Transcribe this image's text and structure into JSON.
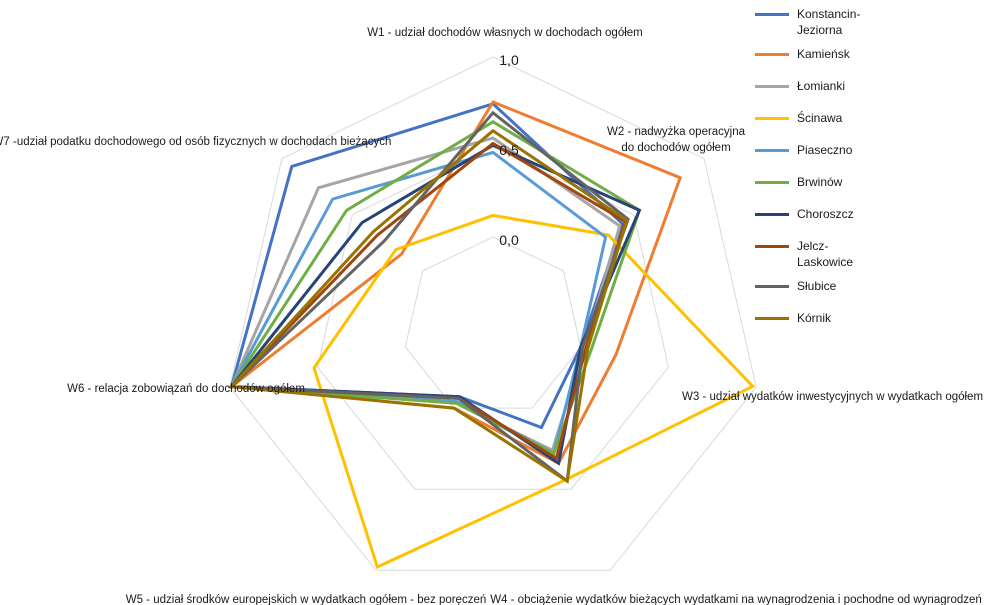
{
  "chart_data": {
    "type": "radar",
    "title": "",
    "axes": [
      "W1 - udział dochodów własnych w dochodach ogółem",
      "W2 - nadwyżka operacyjna do dochodów ogółem",
      "W3 - udział wydatków inwestycyjnych w wydatkach ogółem",
      "W4 - obciążenie wydatków bieżących wydatkami na wynagrodzenia i pochodne od wynagrodzeń",
      "W5 - udział środków europejskich w wydatkach ogółem - bez poręczeń",
      "W6 - relacja zobowiązań do dochodów ogółem",
      "W7 -udział podatku dochodowego od osób fizycznych w dochodach bieżących"
    ],
    "axis_label_lines": [
      [
        "W1 - udział dochodów własnych w dochodach ogółem"
      ],
      [
        "W2 - nadwyżka operacyjna",
        "do dochodów ogółem"
      ],
      [
        "W3 - udział wydatków inwestycyjnych w wydatkach ogółem"
      ],
      [
        "W4 - obciążenie wydatków bieżących wydatkami na wynagrodzenia i pochodne od wynagrodzeń"
      ],
      [
        "W5 - udział środków europejskich w wydatkach ogółem - bez poręczeń"
      ],
      [
        "W6 - relacja zobowiązań do dochodów ogółem"
      ],
      [
        "W7 -udział podatku dochodowego od osób fizycznych w dochodach bieżących"
      ]
    ],
    "r_min": -0.5,
    "r_max": 1.0,
    "ticks": [
      0.0,
      0.5,
      1.0
    ],
    "tick_labels": [
      "0,0",
      "0,5",
      "1,0"
    ],
    "grid": true,
    "grid_color": "#d9d9d9",
    "legend_position": "right",
    "series": [
      {
        "name": "Konstancin-Jeziorna",
        "name_lines": [
          "Konstancin-",
          "Jeziorna"
        ],
        "color": "#4472c4",
        "values": [
          0.74,
          0.42,
          0.0,
          0.12,
          -0.07,
          0.99,
          0.93
        ]
      },
      {
        "name": "Kamieńsk",
        "name_lines": [
          "Kamieńsk"
        ],
        "color": "#ed7d31",
        "values": [
          0.75,
          0.83,
          0.2,
          0.34,
          0.0,
          0.99,
          0.15
        ]
      },
      {
        "name": "Łomianki",
        "name_lines": [
          "Łomianki"
        ],
        "color": "#a5a5a5",
        "values": [
          0.55,
          0.4,
          0.02,
          0.26,
          -0.03,
          0.99,
          0.74
        ]
      },
      {
        "name": "Ścinawa",
        "name_lines": [
          "Ścinawa"
        ],
        "color": "#ffc000",
        "values": [
          0.12,
          0.32,
          0.98,
          0.44,
          0.98,
          0.52,
          0.19
        ]
      },
      {
        "name": "Piaseczno",
        "name_lines": [
          "Piaseczno"
        ],
        "color": "#5b9bd5",
        "values": [
          0.47,
          0.3,
          0.0,
          0.28,
          -0.04,
          0.99,
          0.64
        ]
      },
      {
        "name": "Brwinów",
        "name_lines": [
          "Brwinów"
        ],
        "color": "#70ad47",
        "values": [
          0.64,
          0.54,
          0.06,
          0.28,
          -0.03,
          0.99,
          0.54
        ]
      },
      {
        "name": "Choroszcz",
        "name_lines": [
          "Choroszcz"
        ],
        "color": "#264478",
        "values": [
          0.51,
          0.54,
          0.0,
          0.34,
          -0.07,
          0.99,
          0.43
        ]
      },
      {
        "name": "Jelcz-Laskowice",
        "name_lines": [
          "Jelcz-",
          "Laskowice"
        ],
        "color": "#9e480e",
        "values": [
          0.52,
          0.44,
          0.03,
          0.31,
          -0.06,
          0.99,
          0.32
        ]
      },
      {
        "name": "Słubice",
        "name_lines": [
          "Słubice"
        ],
        "color": "#636363",
        "values": [
          0.69,
          0.46,
          0.01,
          0.45,
          -0.06,
          0.99,
          0.27
        ]
      },
      {
        "name": "Kórnik",
        "name_lines": [
          "Kórnik"
        ],
        "color": "#997300",
        "values": [
          0.59,
          0.45,
          0.04,
          0.45,
          0.0,
          0.99,
          0.35
        ]
      }
    ]
  }
}
